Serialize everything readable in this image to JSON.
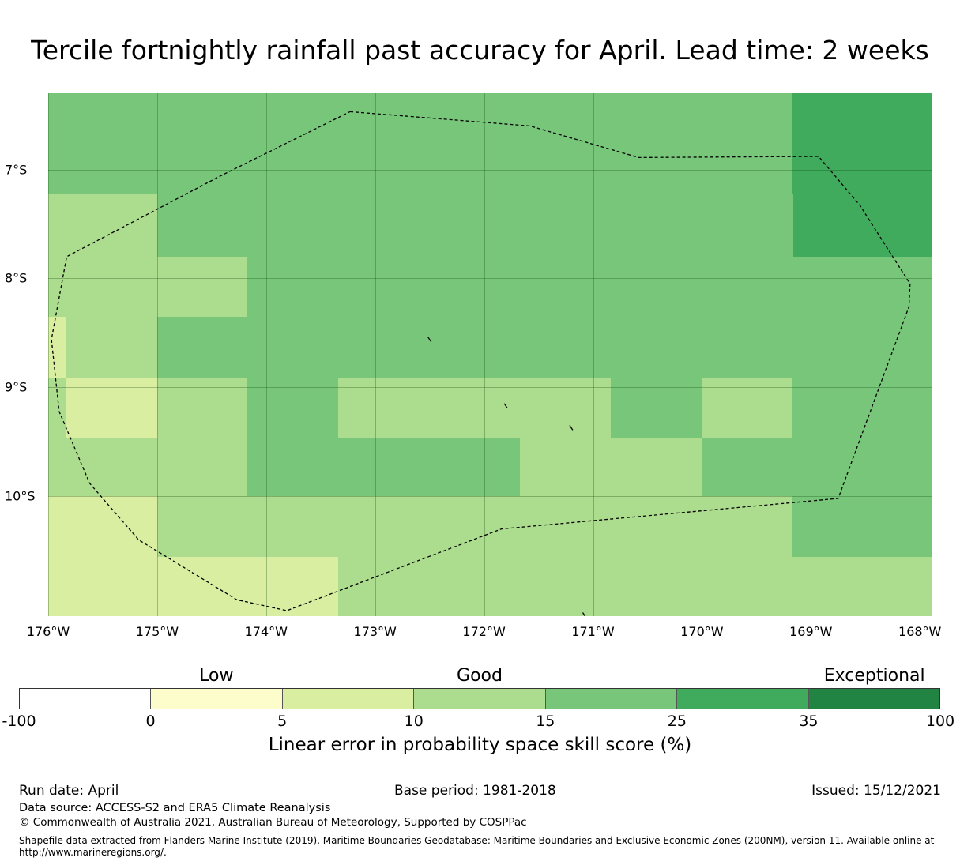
{
  "title": "Tercile fortnightly rainfall past accuracy for April. Lead time: 2 weeks",
  "map": {
    "lon_ticks": [
      "176°W",
      "175°W",
      "174°W",
      "173°W",
      "172°W",
      "171°W",
      "170°W",
      "169°W",
      "168°W"
    ],
    "lat_ticks": [
      "7°S",
      "8°S",
      "9°S",
      "10°S"
    ],
    "lon_range_deg_W": [
      176.0,
      167.9
    ],
    "lat_range_deg_S": [
      6.3,
      11.1
    ],
    "grid_cells": [
      {
        "lon_w": [
          176.0,
          175.0
        ],
        "lat_s": [
          6.3,
          7.23
        ],
        "category": "15-25"
      },
      {
        "lon_w": [
          175.0,
          169.17
        ],
        "lat_s": [
          6.3,
          7.23
        ],
        "category": "15-25"
      },
      {
        "lon_w": [
          169.17,
          167.9
        ],
        "lat_s": [
          6.3,
          7.8
        ],
        "category": "25-35"
      },
      {
        "lon_w": [
          176.0,
          175.0
        ],
        "lat_s": [
          7.23,
          8.35
        ],
        "category": "10-15"
      },
      {
        "lon_w": [
          175.0,
          169.17
        ],
        "lat_s": [
          7.23,
          7.8
        ],
        "category": "15-25"
      },
      {
        "lon_w": [
          175.0,
          174.17
        ],
        "lat_s": [
          7.8,
          8.35
        ],
        "category": "10-15"
      },
      {
        "lon_w": [
          174.17,
          167.9
        ],
        "lat_s": [
          7.8,
          8.35
        ],
        "category": "15-25"
      },
      {
        "lon_w": [
          176.0,
          175.84
        ],
        "lat_s": [
          8.35,
          8.91
        ],
        "category": "5-10"
      },
      {
        "lon_w": [
          175.84,
          175.0
        ],
        "lat_s": [
          8.35,
          8.91
        ],
        "category": "10-15"
      },
      {
        "lon_w": [
          175.0,
          167.9
        ],
        "lat_s": [
          8.35,
          8.91
        ],
        "category": "15-25"
      },
      {
        "lon_w": [
          176.0,
          175.84
        ],
        "lat_s": [
          8.91,
          9.46
        ],
        "category": "10-15"
      },
      {
        "lon_w": [
          175.84,
          175.0
        ],
        "lat_s": [
          8.91,
          9.46
        ],
        "category": "5-10"
      },
      {
        "lon_w": [
          175.0,
          174.17
        ],
        "lat_s": [
          8.91,
          9.46
        ],
        "category": "10-15"
      },
      {
        "lon_w": [
          174.17,
          173.34
        ],
        "lat_s": [
          8.91,
          9.46
        ],
        "category": "15-25"
      },
      {
        "lon_w": [
          173.34,
          170.84
        ],
        "lat_s": [
          8.91,
          9.46
        ],
        "category": "10-15"
      },
      {
        "lon_w": [
          170.84,
          170.0
        ],
        "lat_s": [
          8.91,
          9.46
        ],
        "category": "15-25"
      },
      {
        "lon_w": [
          170.0,
          169.17
        ],
        "lat_s": [
          8.91,
          9.46
        ],
        "category": "10-15"
      },
      {
        "lon_w": [
          169.17,
          167.9
        ],
        "lat_s": [
          8.91,
          9.46
        ],
        "category": "15-25"
      },
      {
        "lon_w": [
          176.0,
          174.17
        ],
        "lat_s": [
          9.46,
          10.0
        ],
        "category": "10-15"
      },
      {
        "lon_w": [
          174.17,
          171.67
        ],
        "lat_s": [
          9.46,
          10.0
        ],
        "category": "15-25"
      },
      {
        "lon_w": [
          171.67,
          170.0
        ],
        "lat_s": [
          9.46,
          10.0
        ],
        "category": "10-15"
      },
      {
        "lon_w": [
          170.0,
          167.9
        ],
        "lat_s": [
          9.46,
          10.0
        ],
        "category": "15-25"
      },
      {
        "lon_w": [
          176.0,
          175.0
        ],
        "lat_s": [
          10.0,
          11.1
        ],
        "category": "5-10"
      },
      {
        "lon_w": [
          175.0,
          169.17
        ],
        "lat_s": [
          10.0,
          10.56
        ],
        "category": "10-15"
      },
      {
        "lon_w": [
          169.17,
          167.9
        ],
        "lat_s": [
          10.0,
          10.56
        ],
        "category": "15-25"
      },
      {
        "lon_w": [
          175.0,
          173.34
        ],
        "lat_s": [
          10.56,
          11.1
        ],
        "category": "5-10"
      },
      {
        "lon_w": [
          173.34,
          167.9
        ],
        "lat_s": [
          10.56,
          11.1
        ],
        "category": "10-15"
      }
    ],
    "eez_boundary": [
      [
        173.23,
        6.47
      ],
      [
        171.58,
        6.6
      ],
      [
        170.58,
        6.89
      ],
      [
        168.93,
        6.88
      ],
      [
        168.55,
        7.33
      ],
      [
        168.09,
        8.05
      ],
      [
        168.1,
        8.26
      ],
      [
        168.75,
        10.02
      ],
      [
        171.84,
        10.3
      ],
      [
        173.81,
        11.05
      ],
      [
        174.27,
        10.95
      ],
      [
        175.17,
        10.4
      ],
      [
        175.62,
        9.88
      ],
      [
        175.9,
        9.22
      ],
      [
        175.97,
        8.56
      ],
      [
        175.83,
        7.8
      ],
      [
        174.4,
        7.05
      ],
      [
        173.23,
        6.47
      ]
    ],
    "islands": [
      [
        172.5,
        8.56
      ],
      [
        171.8,
        9.17
      ],
      [
        171.2,
        9.37
      ],
      [
        171.08,
        11.09
      ]
    ]
  },
  "colorbar": {
    "categories": [
      {
        "label": "Low",
        "at": "0-5"
      },
      {
        "label": "Good",
        "at": "10-15"
      },
      {
        "label": "Exceptional",
        "at": "35-100"
      }
    ],
    "bins": [
      {
        "range": "-100-0",
        "color": "#ffffff"
      },
      {
        "range": "0-5",
        "color": "#fdfdcb"
      },
      {
        "range": "5-10",
        "color": "#d9eea1"
      },
      {
        "range": "10-15",
        "color": "#acdc8d"
      },
      {
        "range": "15-25",
        "color": "#78c67a"
      },
      {
        "range": "25-35",
        "color": "#40ab5c"
      },
      {
        "range": "35-100",
        "color": "#228443"
      }
    ],
    "ticks": [
      "-100",
      "0",
      "5",
      "10",
      "15",
      "25",
      "35",
      "100"
    ],
    "label": "Linear error in probability space skill score (%)"
  },
  "footer": {
    "run_date": "Run date: April",
    "base_period": "Base period: 1981-2018",
    "issued": "Issued: 15/12/2021",
    "data_source": "Data source: ACCESS-S2 and ERA5 Climate Reanalysis",
    "copyright": "© Commonwealth of Australia 2021, Australian Bureau of Meteorology, Supported by COSPPac",
    "shapefile_line1": "Shapefile data extracted from Flanders Marine Institute (2019), Maritime Boundaries Geodatabase: Maritime Boundaries and Exclusive Economic Zones (200NM), version 11. Available online at",
    "shapefile_line2": "http://www.marineregions.org/."
  }
}
